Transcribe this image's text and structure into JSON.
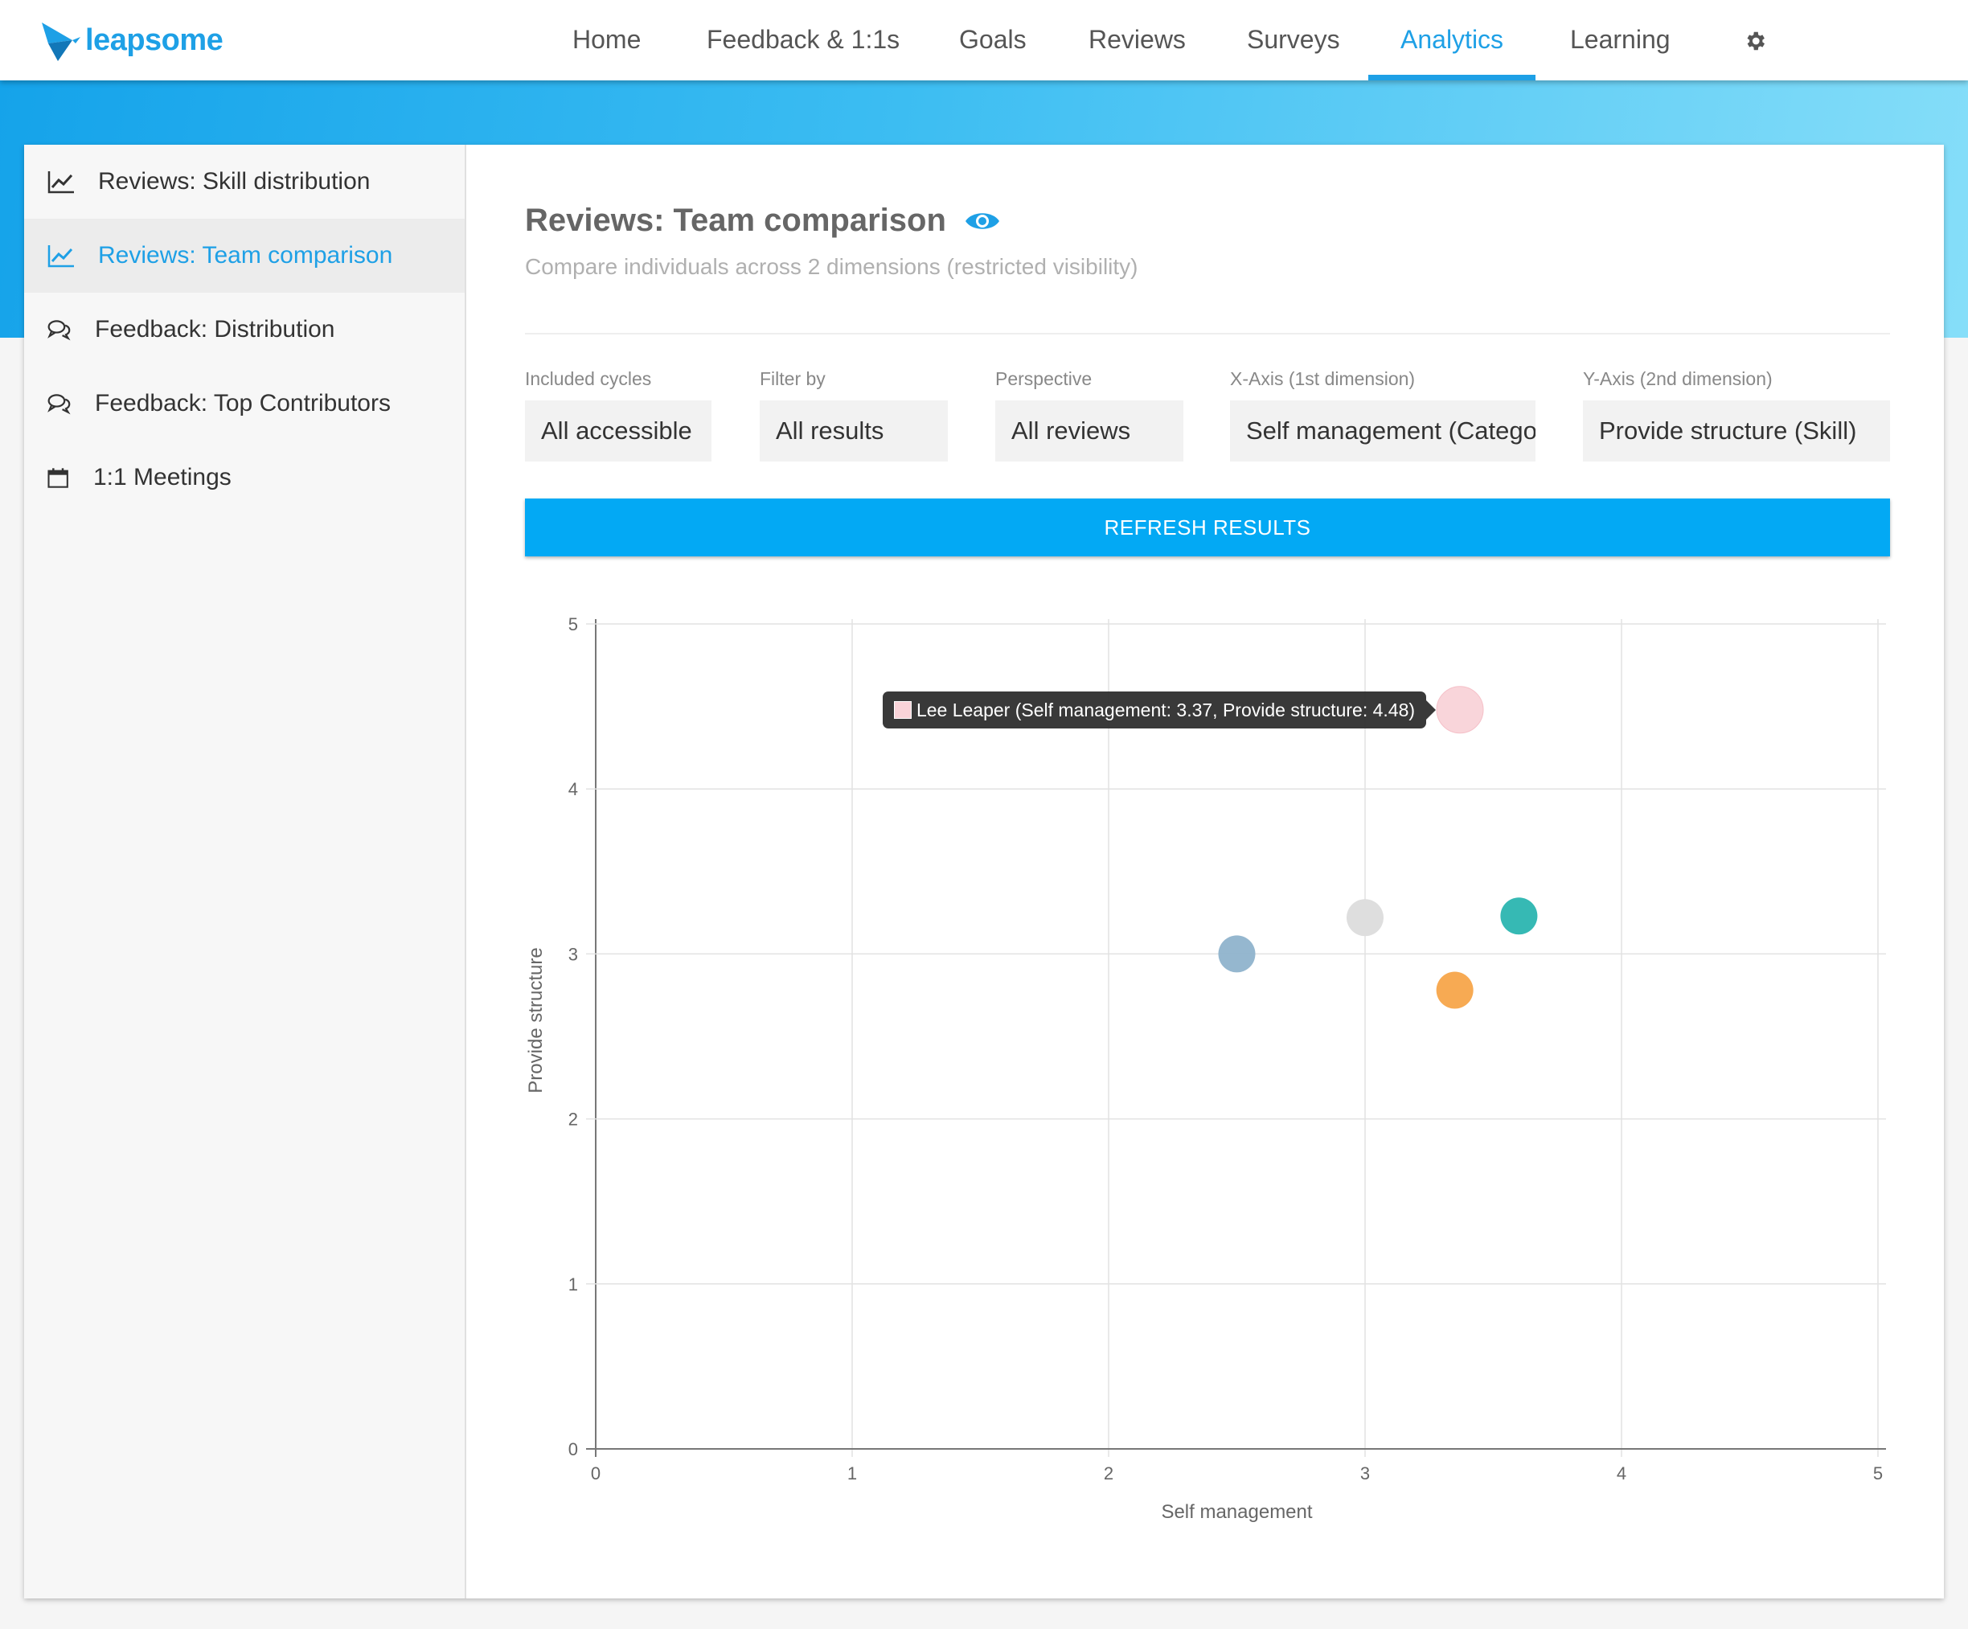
{
  "brand": {
    "name": "leapsome",
    "color": "#1ea0e6"
  },
  "nav": {
    "items": [
      "Home",
      "Feedback & 1:1s",
      "Goals",
      "Reviews",
      "Surveys",
      "Analytics",
      "Learning"
    ],
    "active": "Analytics",
    "settings_icon": "gear-icon"
  },
  "sidebar": {
    "items": [
      {
        "label": "Reviews: Skill distribution",
        "icon": "line-chart-icon"
      },
      {
        "label": "Reviews: Team comparison",
        "icon": "line-chart-icon"
      },
      {
        "label": "Feedback: Distribution",
        "icon": "chat-bubbles-icon"
      },
      {
        "label": "Feedback: Top Contributors",
        "icon": "chat-bubbles-icon"
      },
      {
        "label": "1:1 Meetings",
        "icon": "calendar-icon"
      }
    ],
    "active_index": 1
  },
  "page": {
    "title": "Reviews: Team comparison",
    "visibility_icon": "eye-icon",
    "subtitle": "Compare individuals across 2 dimensions (restricted visibility)"
  },
  "filters": [
    {
      "label": "Included cycles",
      "value": "All accessible"
    },
    {
      "label": "Filter by",
      "value": "All results"
    },
    {
      "label": "Perspective",
      "value": "All reviews"
    },
    {
      "label": "X-Axis (1st dimension)",
      "value": "Self management (Category)"
    },
    {
      "label": "Y-Axis (2nd dimension)",
      "value": "Provide structure (Skill)"
    }
  ],
  "refresh_label": "REFRESH RESULTS",
  "tooltip": {
    "text": "Lee Leaper (Self management: 3.37, Provide structure: 4.48)",
    "swatch_color": "#f9d3d8"
  },
  "chart_data": {
    "type": "scatter",
    "xlabel": "Self management",
    "ylabel": "Provide structure",
    "xlim": [
      0,
      5
    ],
    "ylim": [
      0,
      5
    ],
    "xticks": [
      0,
      1,
      2,
      3,
      4,
      5
    ],
    "yticks": [
      0,
      1,
      2,
      3,
      4,
      5
    ],
    "grid": true,
    "points": [
      {
        "name": "Lee Leaper",
        "x": 3.37,
        "y": 4.48,
        "color": "#f9d3d8"
      },
      {
        "name": "",
        "x": 2.5,
        "y": 3.0,
        "color": "#8fb3cc"
      },
      {
        "name": "",
        "x": 3.0,
        "y": 3.22,
        "color": "#dcdcdc"
      },
      {
        "name": "",
        "x": 3.6,
        "y": 3.23,
        "color": "#2bb5b0"
      },
      {
        "name": "",
        "x": 3.35,
        "y": 2.78,
        "color": "#f7a54a"
      }
    ]
  }
}
